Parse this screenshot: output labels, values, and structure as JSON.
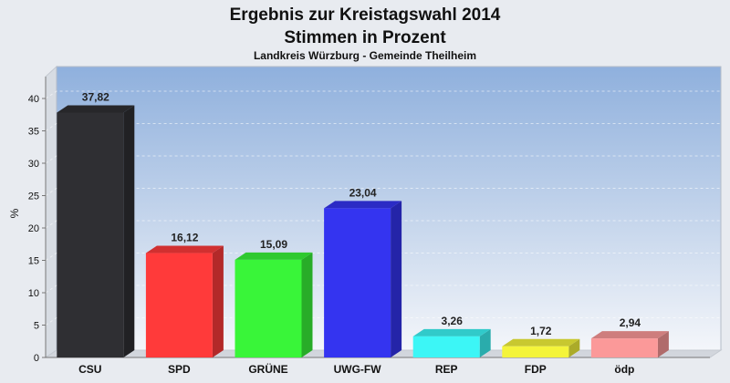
{
  "chart_data": {
    "type": "bar",
    "title": "Ergebnis zur Kreistagswahl 2014",
    "title2": "Stimmen in Prozent",
    "subtitle": "Landkreis Würzburg - Gemeinde Theilheim",
    "ylabel": "%",
    "ylim": [
      0,
      45
    ],
    "yticks": [
      0,
      5,
      10,
      15,
      20,
      25,
      30,
      35,
      40
    ],
    "categories": [
      "CSU",
      "SPD",
      "GRÜNE",
      "UWG-FW",
      "REP",
      "FDP",
      "ödp"
    ],
    "values": [
      37.82,
      16.12,
      15.09,
      23.04,
      3.26,
      1.72,
      2.94
    ],
    "value_labels": [
      "37,82",
      "16,12",
      "15,09",
      "23,04",
      "3,26",
      "1,72",
      "2,94"
    ],
    "colors": [
      "#2f2f33",
      "#ff3a3a",
      "#39f539",
      "#3434f0",
      "#3cf6f6",
      "#f4f43a",
      "#fb9999"
    ],
    "grid": true,
    "legend": "none"
  }
}
